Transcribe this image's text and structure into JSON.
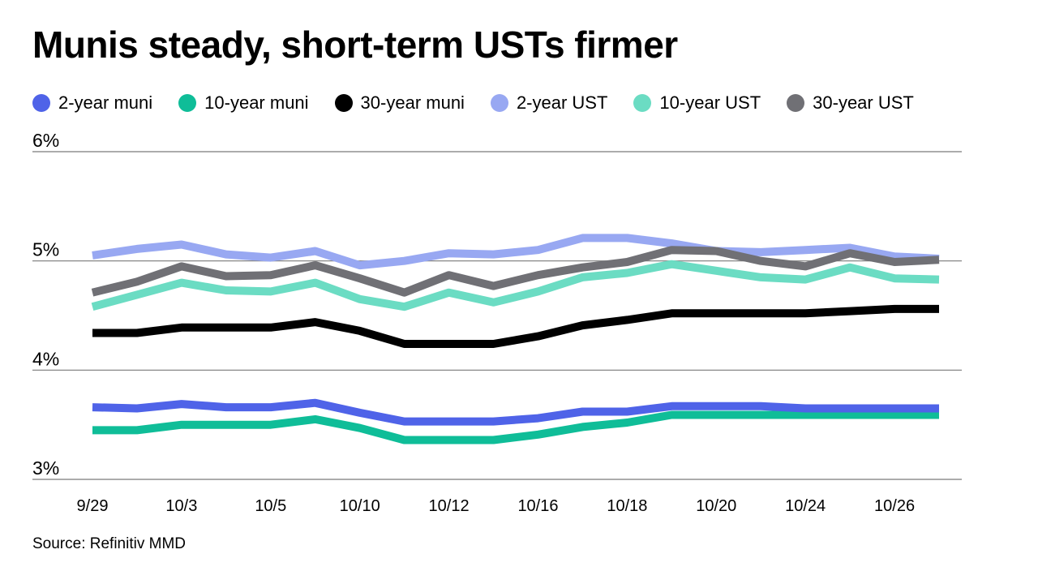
{
  "title": "Munis steady, short-term USTs firmer",
  "source": "Source: Refinitiv MMD",
  "chart_data": {
    "type": "line",
    "x": [
      "9/29",
      "9/30",
      "10/3",
      "10/4",
      "10/5",
      "10/6",
      "10/10",
      "10/11",
      "10/12",
      "10/13",
      "10/16",
      "10/17",
      "10/18",
      "10/19",
      "10/20",
      "10/23",
      "10/24",
      "10/25",
      "10/26",
      "10/27"
    ],
    "x_tick_labels": [
      "9/29",
      "10/3",
      "10/5",
      "10/10",
      "10/12",
      "10/16",
      "10/18",
      "10/20",
      "10/24",
      "10/26"
    ],
    "y_ticks": [
      3,
      4,
      5,
      6
    ],
    "y_tick_labels": [
      "3%",
      "4%",
      "5%",
      "6%"
    ],
    "ylim": [
      3,
      6
    ],
    "grid": true,
    "legend_position": "top",
    "series": [
      {
        "name": "2-year muni",
        "color": "#4f63e8",
        "values": [
          3.66,
          3.65,
          3.69,
          3.66,
          3.66,
          3.7,
          3.61,
          3.53,
          3.53,
          3.53,
          3.56,
          3.62,
          3.62,
          3.67,
          3.67,
          3.67,
          3.65,
          3.65,
          3.65,
          3.65
        ]
      },
      {
        "name": "10-year muni",
        "color": "#0fbd98",
        "values": [
          3.45,
          3.45,
          3.5,
          3.5,
          3.5,
          3.55,
          3.47,
          3.36,
          3.36,
          3.36,
          3.41,
          3.48,
          3.52,
          3.59,
          3.59,
          3.59,
          3.59,
          3.59,
          3.59,
          3.59
        ]
      },
      {
        "name": "30-year muni",
        "color": "#000000",
        "values": [
          4.34,
          4.34,
          4.39,
          4.39,
          4.39,
          4.44,
          4.36,
          4.24,
          4.24,
          4.24,
          4.31,
          4.41,
          4.46,
          4.52,
          4.52,
          4.52,
          4.52,
          4.54,
          4.56,
          4.56
        ]
      },
      {
        "name": "2-year UST",
        "color": "#98a8f2",
        "values": [
          5.05,
          5.11,
          5.15,
          5.06,
          5.03,
          5.09,
          4.96,
          5.0,
          5.07,
          5.06,
          5.1,
          5.21,
          5.21,
          5.16,
          5.09,
          5.08,
          5.1,
          5.12,
          5.04,
          5.02
        ]
      },
      {
        "name": "10-year UST",
        "color": "#6bdcc3",
        "values": [
          4.58,
          4.69,
          4.8,
          4.73,
          4.72,
          4.8,
          4.65,
          4.58,
          4.71,
          4.62,
          4.72,
          4.85,
          4.89,
          4.97,
          4.91,
          4.85,
          4.83,
          4.94,
          4.84,
          4.83
        ]
      },
      {
        "name": "30-year UST",
        "color": "#707075",
        "values": [
          4.71,
          4.81,
          4.95,
          4.86,
          4.87,
          4.96,
          4.84,
          4.71,
          4.87,
          4.77,
          4.87,
          4.94,
          4.99,
          5.1,
          5.09,
          5.0,
          4.95,
          5.07,
          4.99,
          5.01
        ]
      }
    ]
  }
}
